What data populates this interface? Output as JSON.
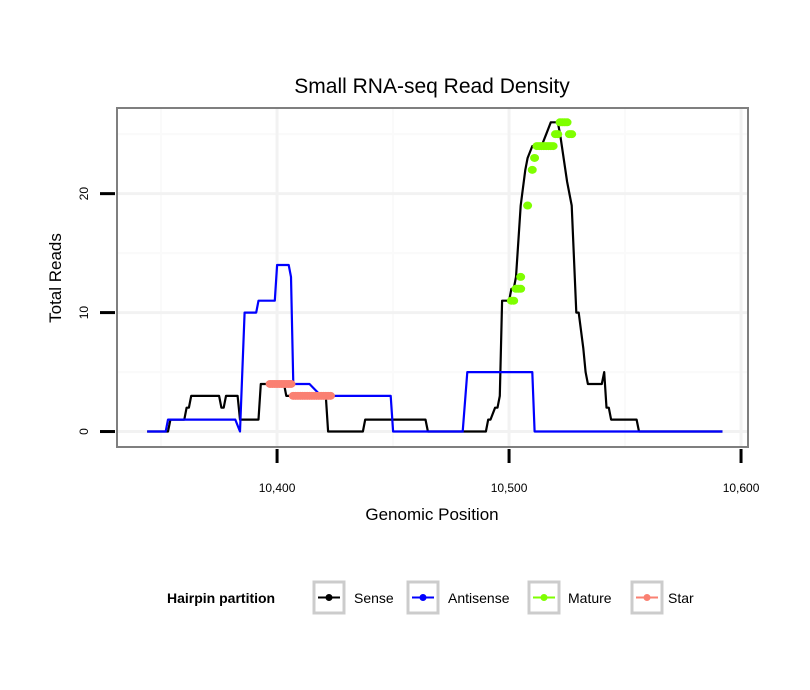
{
  "chart_data": {
    "type": "line",
    "title": "Small RNA-seq Read Density",
    "xlabel": "Genomic Position",
    "ylabel": "Total Reads",
    "xlim": [
      10331,
      10603
    ],
    "ylim": [
      -1.3,
      27.2
    ],
    "x_ticks": [
      10400,
      10500,
      10600
    ],
    "x_tick_labels": [
      "10,400",
      "10,500",
      "10,600"
    ],
    "y_ticks": [
      0,
      10,
      20
    ],
    "y_tick_labels": [
      "0",
      "10",
      "20"
    ],
    "grid": true,
    "legend": {
      "title": "Hairpin partition",
      "placement": "bottom",
      "entries": [
        {
          "label": "Sense",
          "color": "#000000"
        },
        {
          "label": "Antisense",
          "color": "#0000ff"
        },
        {
          "label": "Mature",
          "color": "#7fff00"
        },
        {
          "label": "Star",
          "color": "#fa8072"
        }
      ]
    },
    "series": [
      {
        "name": "Sense",
        "color": "#000000",
        "style": "line",
        "x": [
          10344,
          10353,
          10354,
          10360,
          10361,
          10362,
          10363,
          10375,
          10376,
          10377,
          10378,
          10383,
          10384,
          10392,
          10393,
          10403,
          10404,
          10421,
          10422,
          10437,
          10438,
          10464,
          10465,
          10490,
          10491,
          10492,
          10494,
          10495,
          10496,
          10497,
          10500,
          10501,
          10502,
          10503,
          10505,
          10507,
          10508,
          10510,
          10514,
          10516,
          10518,
          10521,
          10522,
          10525,
          10527,
          10529,
          10530,
          10532,
          10533,
          10534,
          10540,
          10541,
          10542,
          10543,
          10544,
          10555,
          10556,
          10592
        ],
        "y": [
          0,
          0,
          1,
          1,
          2,
          2,
          3,
          3,
          2,
          2,
          3,
          3,
          1,
          1,
          4,
          4,
          3,
          3,
          0,
          0,
          1,
          1,
          0,
          0,
          1,
          1,
          2,
          2,
          3,
          11,
          11,
          12,
          12,
          13,
          19,
          22,
          23,
          24,
          24,
          25,
          26,
          26,
          25,
          21,
          19,
          10,
          10,
          7,
          5,
          4,
          4,
          5,
          2,
          2,
          1,
          1,
          0,
          0
        ]
      },
      {
        "name": "Antisense",
        "color": "#0000ff",
        "style": "line",
        "x": [
          10344,
          10352,
          10353,
          10382,
          10384,
          10386,
          10391,
          10392,
          10394,
          10398,
          10399,
          10400,
          10405,
          10406,
          10407,
          10408,
          10413,
          10414,
          10419,
          10420,
          10421,
          10449,
          10450,
          10480,
          10482,
          10496,
          10498,
          10499,
          10510,
          10511,
          10518,
          10519,
          10520,
          10530,
          10532,
          10542,
          10543,
          10547,
          10548,
          10570,
          10572,
          10578,
          10580,
          10592
        ],
        "y": [
          0,
          0,
          1,
          1,
          0,
          10,
          10,
          11,
          11,
          11,
          11,
          14,
          14,
          13,
          4,
          4,
          4,
          4,
          3,
          3,
          3,
          3,
          0,
          0,
          5,
          5,
          5,
          5,
          5,
          0,
          0,
          0,
          0,
          0,
          0,
          0,
          0,
          0,
          0,
          0,
          0,
          0,
          0,
          0
        ]
      },
      {
        "name": "Mature",
        "color": "#7fff00",
        "style": "points",
        "x": [
          10501,
          10502,
          10503,
          10504,
          10505,
          10505,
          10508,
          10510,
          10511,
          10512,
          10513,
          10514,
          10515,
          10516,
          10517,
          10518,
          10519,
          10520,
          10521,
          10522,
          10523,
          10524,
          10525,
          10526,
          10527
        ],
        "y": [
          11,
          11,
          12,
          12,
          12,
          13,
          19,
          22,
          23,
          24,
          24,
          24,
          24,
          24,
          24,
          24,
          24,
          25,
          25,
          26,
          26,
          26,
          26,
          25,
          25
        ]
      },
      {
        "name": "Star",
        "color": "#fa8072",
        "style": "points",
        "x": [
          10397,
          10398,
          10399,
          10400,
          10401,
          10402,
          10403,
          10404,
          10405,
          10406,
          10407,
          10408,
          10409,
          10410,
          10411,
          10412,
          10413,
          10414,
          10415,
          10416,
          10417,
          10418,
          10419,
          10420,
          10421,
          10422,
          10423
        ],
        "y": [
          4,
          4,
          4,
          4,
          4,
          4,
          4,
          4,
          4,
          4,
          3,
          3,
          3,
          3,
          3,
          3,
          3,
          3,
          3,
          3,
          3,
          3,
          3,
          3,
          3,
          3,
          3
        ]
      }
    ]
  }
}
